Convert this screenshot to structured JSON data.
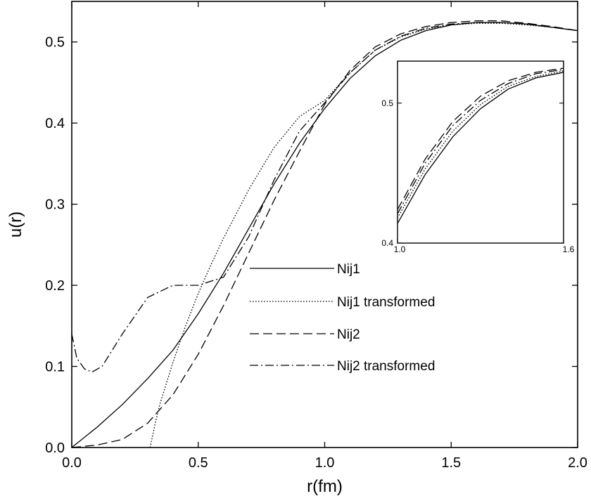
{
  "chart_data": [
    {
      "type": "line",
      "xlabel": "r(fm)",
      "ylabel": "u(r)",
      "xlim": [
        0.0,
        2.0
      ],
      "ylim": [
        0.0,
        0.55
      ],
      "x_ticks": [
        "0.0",
        "0.5",
        "1.0",
        "1.5",
        "2.0"
      ],
      "y_ticks": [
        "0.0",
        "0.1",
        "0.2",
        "0.3",
        "0.4",
        "0.5"
      ],
      "grid": false,
      "legend_position": "center-right",
      "series": [
        {
          "name": "Nij1",
          "style": "solid",
          "x": [
            0.0,
            0.1,
            0.2,
            0.3,
            0.4,
            0.5,
            0.6,
            0.7,
            0.8,
            0.9,
            1.0,
            1.1,
            1.2,
            1.3,
            1.4,
            1.5,
            1.6,
            1.7,
            1.8,
            1.9,
            2.0
          ],
          "y": [
            0.0,
            0.025,
            0.053,
            0.085,
            0.12,
            0.165,
            0.215,
            0.27,
            0.325,
            0.375,
            0.418,
            0.455,
            0.483,
            0.502,
            0.514,
            0.521,
            0.524,
            0.524,
            0.522,
            0.518,
            0.514
          ]
        },
        {
          "name": "Nij1 transformed",
          "style": "dotted",
          "x": [
            0.31,
            0.33,
            0.35,
            0.4,
            0.45,
            0.5,
            0.55,
            0.6,
            0.7,
            0.8,
            0.9,
            1.0,
            1.1,
            1.2,
            1.3,
            1.4,
            1.5,
            1.6,
            1.7,
            1.8,
            1.9,
            2.0
          ],
          "y": [
            0.0,
            0.03,
            0.055,
            0.105,
            0.15,
            0.19,
            0.225,
            0.258,
            0.318,
            0.37,
            0.408,
            0.428,
            0.462,
            0.49,
            0.506,
            0.516,
            0.521,
            0.523,
            0.523,
            0.521,
            0.518,
            0.514
          ]
        },
        {
          "name": "Nij2",
          "style": "dashed",
          "x": [
            0.0,
            0.1,
            0.2,
            0.3,
            0.4,
            0.5,
            0.6,
            0.7,
            0.8,
            0.9,
            1.0,
            1.1,
            1.2,
            1.3,
            1.4,
            1.5,
            1.6,
            1.7,
            1.8,
            1.9,
            2.0
          ],
          "y": [
            0.0,
            0.003,
            0.01,
            0.03,
            0.065,
            0.115,
            0.175,
            0.24,
            0.305,
            0.365,
            0.423,
            0.465,
            0.494,
            0.51,
            0.519,
            0.524,
            0.526,
            0.526,
            0.523,
            0.519,
            0.514
          ]
        },
        {
          "name": "Nij2 transformed",
          "style": "dash-dot",
          "x": [
            0.0,
            0.02,
            0.05,
            0.08,
            0.12,
            0.2,
            0.3,
            0.4,
            0.5,
            0.6,
            0.7,
            0.8,
            0.9,
            1.0,
            1.1,
            1.2,
            1.3,
            1.4,
            1.5,
            1.6,
            1.7,
            1.8,
            1.9,
            2.0
          ],
          "y": [
            0.14,
            0.11,
            0.097,
            0.093,
            0.1,
            0.14,
            0.185,
            0.2,
            0.2,
            0.21,
            0.26,
            0.33,
            0.39,
            0.425,
            0.462,
            0.49,
            0.507,
            0.517,
            0.522,
            0.524,
            0.524,
            0.522,
            0.518,
            0.514
          ]
        }
      ]
    },
    {
      "type": "line",
      "role": "inset",
      "xlim": [
        1.0,
        1.6
      ],
      "ylim": [
        0.4,
        0.53
      ],
      "x_ticks": [
        "1.0",
        "1.6"
      ],
      "y_ticks": [
        "0.4",
        "0.5"
      ],
      "grid": false,
      "series": [
        {
          "style": "solid",
          "x": [
            1.0,
            1.1,
            1.2,
            1.3,
            1.4,
            1.5,
            1.6
          ],
          "y": [
            0.414,
            0.449,
            0.476,
            0.496,
            0.51,
            0.518,
            0.522
          ]
        },
        {
          "style": "dotted",
          "x": [
            1.0,
            1.1,
            1.2,
            1.3,
            1.4,
            1.5,
            1.6
          ],
          "y": [
            0.418,
            0.453,
            0.48,
            0.499,
            0.512,
            0.519,
            0.523
          ]
        },
        {
          "style": "dashed",
          "x": [
            1.0,
            1.1,
            1.2,
            1.3,
            1.4,
            1.5,
            1.6
          ],
          "y": [
            0.424,
            0.46,
            0.487,
            0.505,
            0.516,
            0.522,
            0.525
          ]
        },
        {
          "style": "dash-dot",
          "x": [
            1.0,
            1.1,
            1.2,
            1.3,
            1.4,
            1.5,
            1.6
          ],
          "y": [
            0.421,
            0.457,
            0.484,
            0.502,
            0.514,
            0.521,
            0.524
          ]
        }
      ]
    }
  ]
}
